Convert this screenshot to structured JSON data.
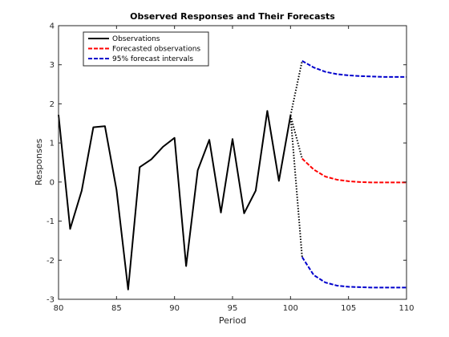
{
  "chart_data": {
    "type": "line",
    "title": "Observed Responses and Their Forecasts",
    "xlabel": "Period",
    "ylabel": "Responses",
    "xlim": [
      80,
      110
    ],
    "ylim": [
      -3,
      4
    ],
    "xticks": [
      80,
      85,
      90,
      95,
      100,
      105,
      110
    ],
    "yticks": [
      -3,
      -2,
      -1,
      0,
      1,
      2,
      3,
      4
    ],
    "grid": false,
    "legend_position": "top-left",
    "legend": [
      {
        "label": "Observations",
        "color": "#000000",
        "style": "solid"
      },
      {
        "label": "Forecasted observations",
        "color": "#ff0000",
        "style": "dashed"
      },
      {
        "label": "95% forecast intervals",
        "color": "#0000cc",
        "style": "dashed"
      }
    ],
    "series": [
      {
        "name": "Observations",
        "color": "#000000",
        "style": "solid",
        "x": [
          80,
          81,
          82,
          83,
          84,
          85,
          86,
          87,
          88,
          89,
          90,
          91,
          92,
          93,
          94,
          95,
          96,
          97,
          98,
          99,
          100
        ],
        "y": [
          1.72,
          -1.2,
          -0.22,
          1.4,
          1.43,
          -0.2,
          -2.75,
          0.38,
          0.58,
          0.9,
          1.13,
          -2.15,
          0.3,
          1.08,
          -0.78,
          1.1,
          -0.8,
          -0.22,
          1.82,
          0.03,
          1.7
        ]
      },
      {
        "name": "Forecasted observations",
        "color": "#ff0000",
        "style": "dashed",
        "x": [
          101,
          102,
          103,
          104,
          105,
          106,
          107,
          108,
          109,
          110
        ],
        "y": [
          0.6,
          0.32,
          0.14,
          0.06,
          0.02,
          0.0,
          -0.01,
          -0.01,
          -0.01,
          -0.01
        ]
      },
      {
        "name": "95% forecast intervals (upper)",
        "color": "#0000cc",
        "style": "dashed",
        "x": [
          101,
          102,
          103,
          104,
          105,
          106,
          107,
          108,
          109,
          110
        ],
        "y": [
          3.1,
          2.93,
          2.82,
          2.76,
          2.73,
          2.71,
          2.7,
          2.69,
          2.69,
          2.69
        ]
      },
      {
        "name": "95% forecast intervals (lower)",
        "color": "#0000cc",
        "style": "dashed",
        "x": [
          101,
          102,
          103,
          104,
          105,
          106,
          107,
          108,
          109,
          110
        ],
        "y": [
          -1.92,
          -2.38,
          -2.57,
          -2.65,
          -2.68,
          -2.69,
          -2.7,
          -2.7,
          -2.7,
          -2.7
        ]
      },
      {
        "name": "connector-upper",
        "color": "#000000",
        "style": "dotted",
        "x": [
          100,
          101
        ],
        "y": [
          1.7,
          3.1
        ]
      },
      {
        "name": "connector-lower",
        "color": "#000000",
        "style": "dotted",
        "x": [
          100,
          101
        ],
        "y": [
          1.7,
          -1.92
        ]
      },
      {
        "name": "connector-forecast",
        "color": "#000000",
        "style": "dotted",
        "x": [
          100,
          101
        ],
        "y": [
          1.7,
          0.6
        ]
      }
    ]
  }
}
